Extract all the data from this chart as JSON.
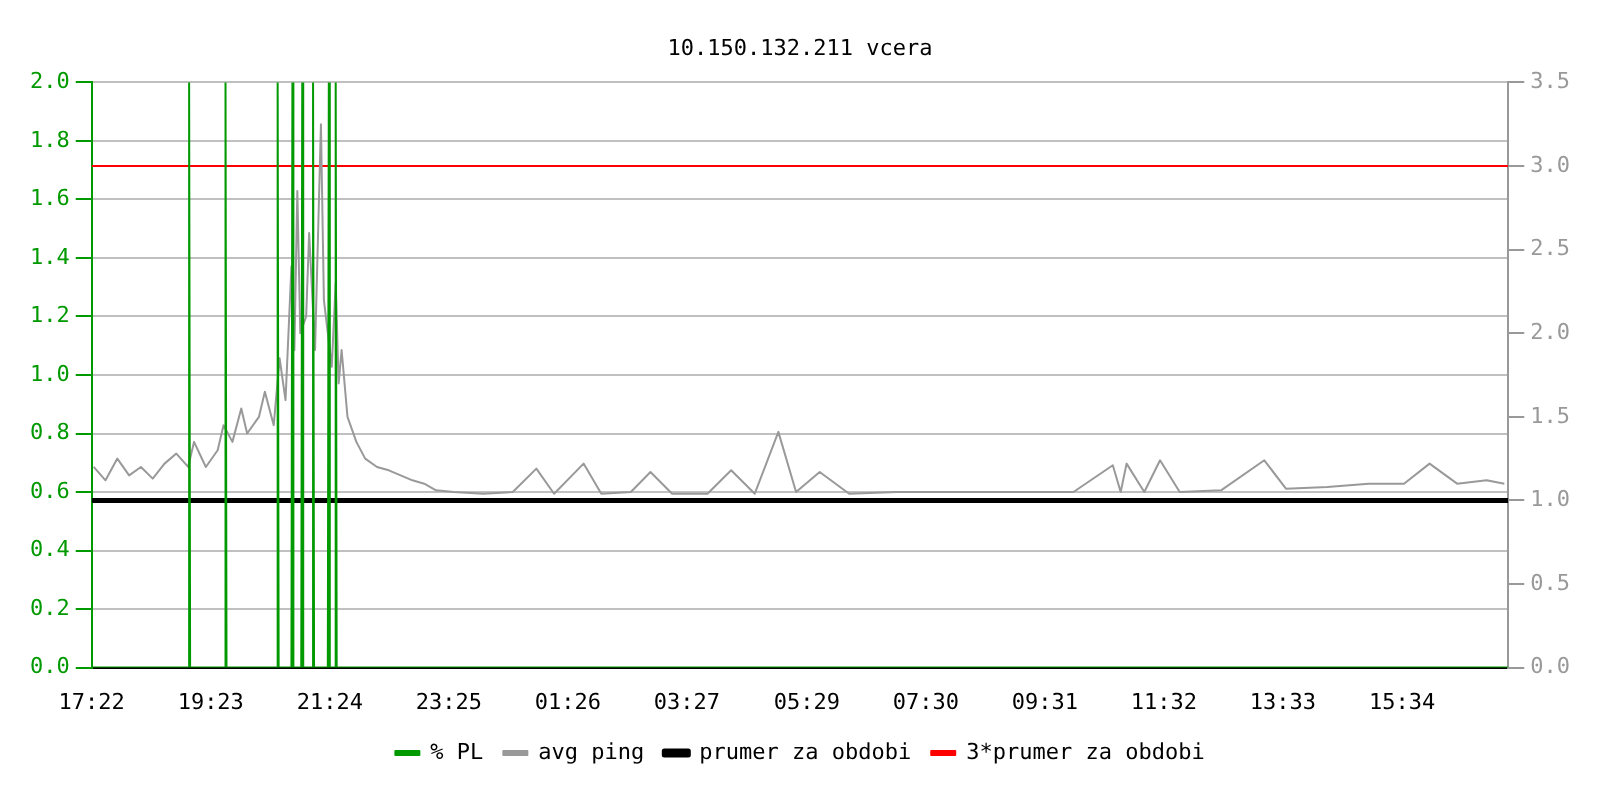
{
  "chart_data": {
    "type": "line",
    "title": "10.150.132.211 vcera",
    "xlim": [
      "--01-01T17:22",
      "--01-02T17:22"
    ],
    "xticks": [
      {
        "value": "--01-01T17:22",
        "label": "17:22"
      },
      {
        "value": "--01-01T19:23",
        "label": "19:23"
      },
      {
        "value": "--01-01T21:24",
        "label": "21:24"
      },
      {
        "value": "--01-01T23:25",
        "label": "23:25"
      },
      {
        "value": "--01-02T01:26",
        "label": "01:26"
      },
      {
        "value": "--01-02T03:27",
        "label": "03:27"
      },
      {
        "value": "--01-02T05:29",
        "label": "05:29"
      },
      {
        "value": "--01-02T07:30",
        "label": "07:30"
      },
      {
        "value": "--01-02T09:31",
        "label": "09:31"
      },
      {
        "value": "--01-02T11:32",
        "label": "11:32"
      },
      {
        "value": "--01-02T13:33",
        "label": "13:33"
      },
      {
        "value": "--01-02T15:34",
        "label": "15:34"
      }
    ],
    "ylim": [
      0,
      2
    ],
    "yticks": [
      {
        "value": 0,
        "label": "0.0"
      },
      0.2,
      0.4,
      0.6,
      0.8,
      {
        "value": 1,
        "label": "1.0"
      },
      1.2,
      1.4,
      1.6,
      1.8,
      {
        "value": 2,
        "label": "2.0"
      }
    ],
    "y2lim": [
      0,
      3.5
    ],
    "y2ticks": [
      {
        "value": 0,
        "label": "0.0"
      },
      0.5,
      {
        "value": 1,
        "label": "1.0"
      },
      1.5,
      {
        "value": 2,
        "label": "2.0"
      },
      2.5,
      {
        "value": 3,
        "label": "3.0"
      },
      3.5
    ],
    "grid": "y",
    "legend": "bottom",
    "marker": "none",
    "line_style": "solid",
    "series": [
      {
        "name": "% PL",
        "color": "#009900",
        "x": [
          "--01-01T17:22",
          "--01-01T19:00",
          "--01-01T19:01",
          "--01-01T19:02",
          "--01-01T19:37",
          "--01-01T19:38",
          "--01-01T19:39",
          "--01-01T20:30",
          "--01-01T20:31",
          "--01-01T20:32",
          "--01-01T20:45",
          "--01-01T20:46",
          "--01-01T20:47",
          "--01-01T20:55",
          "--01-01T20:56",
          "--01-01T20:57",
          "--01-01T21:06",
          "--01-01T21:07",
          "--01-01T21:08",
          "--01-01T21:22",
          "--01-01T21:23",
          "--01-01T21:24",
          "--01-01T21:29",
          "--01-01T21:30",
          "--01-01T21:31",
          "--01-02T17:22"
        ],
        "values": [
          0,
          0,
          2,
          0,
          0,
          2,
          0,
          0,
          2,
          0,
          0,
          2,
          0,
          0,
          2,
          0,
          0,
          2,
          0,
          0,
          2,
          0,
          0,
          2,
          0,
          0
        ]
      },
      {
        "name": "avg ping",
        "color": "#999999",
        "axis": "y2",
        "x": [
          "--01-01T17:24",
          "--01-01T17:36",
          "--01-01T17:48",
          "--01-01T18:00",
          "--01-01T18:12",
          "--01-01T18:24",
          "--01-01T18:36",
          "--01-01T18:48",
          "--01-01T19:00",
          "--01-01T19:06",
          "--01-01T19:18",
          "--01-01T19:30",
          "--01-01T19:36",
          "--01-01T19:45",
          "--01-01T19:54",
          "--01-01T20:00",
          "--01-01T20:12",
          "--01-01T20:18",
          "--01-01T20:27",
          "--01-01T20:33",
          "--01-01T20:39",
          "--01-01T20:45",
          "--01-01T20:48",
          "--01-01T20:51",
          "--01-01T20:54",
          "--01-01T21:00",
          "--01-01T21:03",
          "--01-01T21:09",
          "--01-01T21:15",
          "--01-01T21:18",
          "--01-01T21:26",
          "--01-01T21:30",
          "--01-01T21:33",
          "--01-01T21:36",
          "--01-01T21:42",
          "--01-01T21:51",
          "--01-01T22:00",
          "--01-01T22:12",
          "--01-01T22:24",
          "--01-01T22:36",
          "--01-01T22:48",
          "--01-01T23:00",
          "--01-01T23:12",
          "--01-01T23:30",
          "--01-02T00:00",
          "--01-02T00:30",
          "--01-02T00:54",
          "--01-02T01:12",
          "--01-02T01:42",
          "--01-02T02:00",
          "--01-02T02:30",
          "--01-02T02:50",
          "--01-02T03:12",
          "--01-02T03:48",
          "--01-02T04:12",
          "--01-02T04:36",
          "--01-02T05:00",
          "--01-02T05:18",
          "--01-02T05:42",
          "--01-02T06:12",
          "--01-02T07:00",
          "--01-02T08:00",
          "--01-02T09:00",
          "--01-02T10:00",
          "--01-02T10:40",
          "--01-02T10:48",
          "--01-02T10:54",
          "--01-02T11:12",
          "--01-02T11:28",
          "--01-02T11:48",
          "--01-02T12:30",
          "--01-02T13:14",
          "--01-02T13:36",
          "--01-02T14:18",
          "--01-02T15:00",
          "--01-02T15:36",
          "--01-02T16:02",
          "--01-02T16:30",
          "--01-02T17:00",
          "--01-02T17:18"
        ],
        "values": [
          1.2,
          1.12,
          1.25,
          1.15,
          1.2,
          1.13,
          1.22,
          1.28,
          1.2,
          1.35,
          1.2,
          1.3,
          1.45,
          1.35,
          1.55,
          1.4,
          1.5,
          1.65,
          1.45,
          1.85,
          1.6,
          2.4,
          1.9,
          2.85,
          2.0,
          2.1,
          2.6,
          1.9,
          3.25,
          2.2,
          1.8,
          2.3,
          1.7,
          1.9,
          1.5,
          1.35,
          1.25,
          1.2,
          1.18,
          1.15,
          1.12,
          1.1,
          1.06,
          1.05,
          1.04,
          1.05,
          1.19,
          1.04,
          1.22,
          1.04,
          1.05,
          1.17,
          1.04,
          1.04,
          1.18,
          1.04,
          1.41,
          1.05,
          1.17,
          1.04,
          1.05,
          1.05,
          1.05,
          1.05,
          1.21,
          1.05,
          1.22,
          1.05,
          1.24,
          1.05,
          1.06,
          1.24,
          1.07,
          1.08,
          1.1,
          1.1,
          1.22,
          1.1,
          1.12,
          1.1
        ]
      },
      {
        "name": "prumer za obdobi",
        "color": "#000000",
        "axis": "y2",
        "x": [
          "--01-01T17:22",
          "--01-02T17:22"
        ],
        "values": [
          1.0,
          1.0
        ]
      },
      {
        "name": "3*prumer za obdobi",
        "color": "#ff0000",
        "axis": "y2",
        "x": [
          "--01-01T17:22",
          "--01-02T17:22"
        ],
        "values": [
          3.0,
          3.0
        ]
      }
    ]
  }
}
